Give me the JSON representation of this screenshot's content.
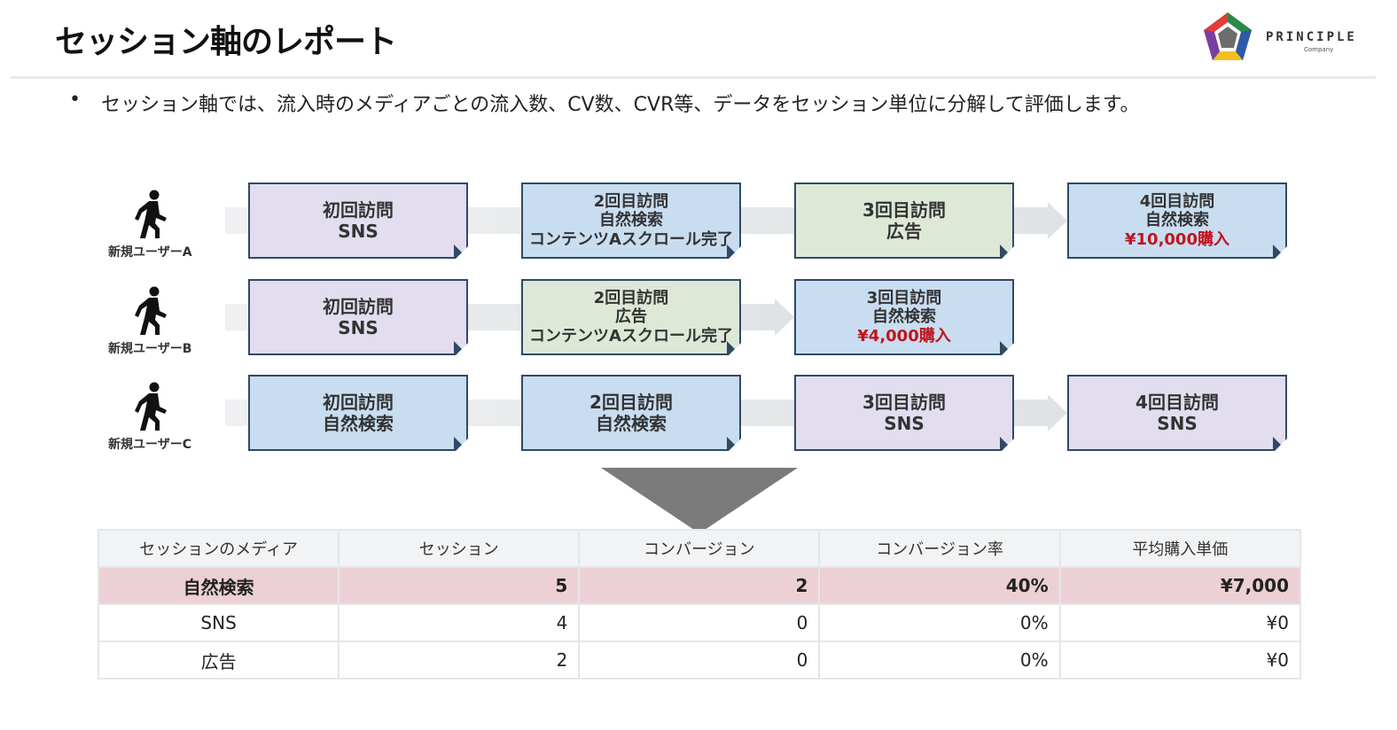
{
  "header": {
    "title": "セッション軸のレポート",
    "logo_text": "PRINCIPLE",
    "logo_subtext": "Company"
  },
  "bullet": "セッション軸では、流入時のメディアごとの流入数、CV数、CVR等、データをセッション単位に分解して評価します。",
  "flow": [
    {
      "user": "新規ユーザーA",
      "steps": [
        {
          "lines": [
            "初回訪問",
            "SNS"
          ],
          "media": "sns"
        },
        {
          "lines": [
            "2回目訪問",
            "自然検索",
            "コンテンツAスクロール完了"
          ],
          "media": "search"
        },
        {
          "lines": [
            "3回目訪問",
            "広告"
          ],
          "media": "ad"
        },
        {
          "lines": [
            "4回目訪問",
            "自然検索"
          ],
          "purchase": "¥10,000購入",
          "media": "search"
        }
      ]
    },
    {
      "user": "新規ユーザーB",
      "steps": [
        {
          "lines": [
            "初回訪問",
            "SNS"
          ],
          "media": "sns"
        },
        {
          "lines": [
            "2回目訪問",
            "広告",
            "コンテンツAスクロール完了"
          ],
          "media": "ad"
        },
        {
          "lines": [
            "3回目訪問",
            "自然検索"
          ],
          "purchase": "¥4,000購入",
          "media": "search"
        }
      ]
    },
    {
      "user": "新規ユーザーC",
      "steps": [
        {
          "lines": [
            "初回訪問",
            "自然検索"
          ],
          "media": "search"
        },
        {
          "lines": [
            "2回目訪問",
            "自然検索"
          ],
          "media": "search"
        },
        {
          "lines": [
            "3回目訪問",
            "SNS"
          ],
          "media": "sns"
        },
        {
          "lines": [
            "4回目訪問",
            "SNS"
          ],
          "media": "sns"
        }
      ]
    }
  ],
  "colors": {
    "sns": "#e2ddef",
    "search": "#c9ddf0",
    "ad": "#dde8d6",
    "highlight_row": "#ecd0d5",
    "purchase_text": "#c0141e",
    "card_border": "#2f4a66"
  },
  "icons": {
    "user": "walking-person-icon",
    "arrow": "down-triangle-icon"
  },
  "table": {
    "headers": [
      "セッションのメディア",
      "セッション",
      "コンバージョン",
      "コンバージョン率",
      "平均購入単価"
    ],
    "rows": [
      {
        "media": "自然検索",
        "sessions": "5",
        "conversions": "2",
        "cvr": "40%",
        "avg_price": "¥7,000",
        "highlight": true
      },
      {
        "media": "SNS",
        "sessions": "4",
        "conversions": "0",
        "cvr": "0%",
        "avg_price": "¥0",
        "highlight": false
      },
      {
        "media": "広告",
        "sessions": "2",
        "conversions": "0",
        "cvr": "0%",
        "avg_price": "¥0",
        "highlight": false
      }
    ]
  }
}
